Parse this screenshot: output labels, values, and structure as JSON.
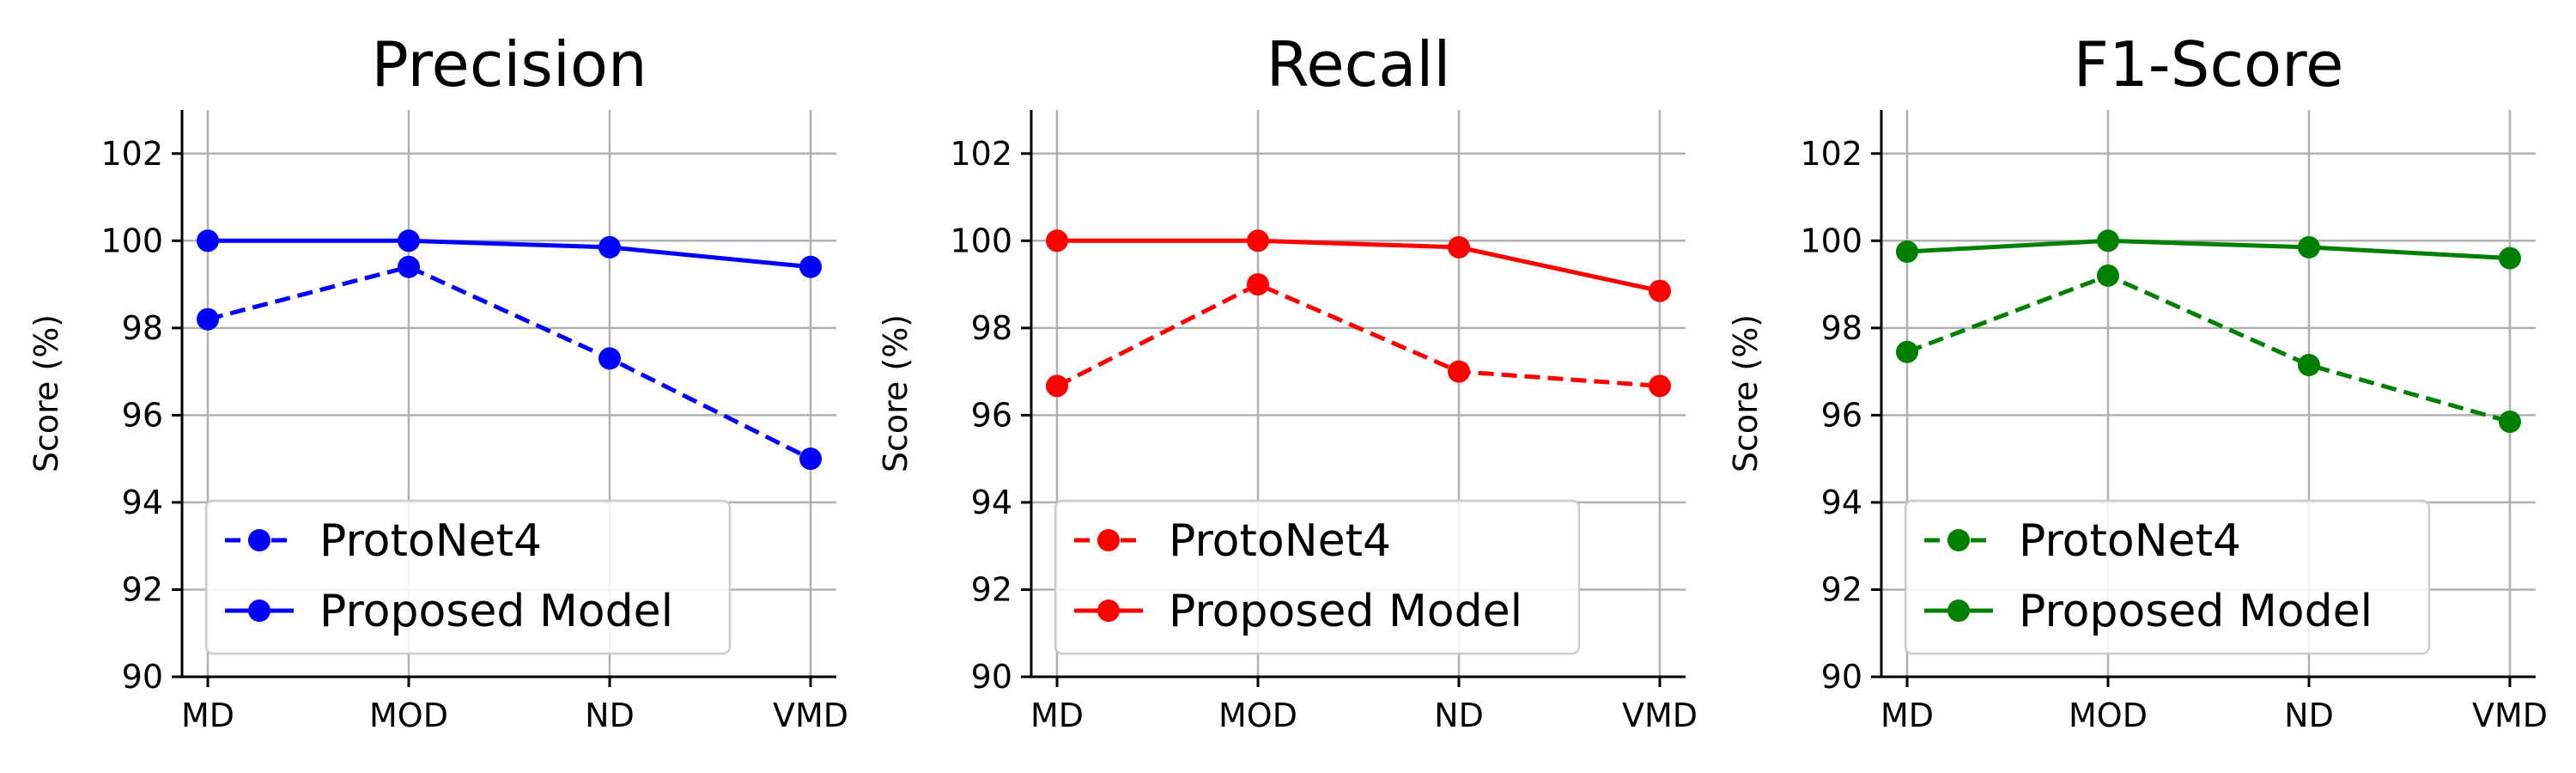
{
  "chart_data": [
    {
      "type": "line",
      "title": "Precision",
      "xlabel": "",
      "ylabel": "Score (%)",
      "categories": [
        "MD",
        "MOD",
        "ND",
        "VMD"
      ],
      "ylim": [
        90,
        103
      ],
      "yticks": [
        90,
        92,
        94,
        96,
        98,
        100,
        102
      ],
      "grid": true,
      "legend_position": "lower-left",
      "color": "#0000ff",
      "series": [
        {
          "name": "ProtoNet4",
          "style": "dashed",
          "values": [
            98.2,
            99.4,
            97.3,
            95.0
          ]
        },
        {
          "name": "Proposed Model",
          "style": "solid",
          "values": [
            100.0,
            100.0,
            99.85,
            99.4
          ]
        }
      ]
    },
    {
      "type": "line",
      "title": "Recall",
      "xlabel": "",
      "ylabel": "Score (%)",
      "categories": [
        "MD",
        "MOD",
        "ND",
        "VMD"
      ],
      "ylim": [
        90,
        103
      ],
      "yticks": [
        90,
        92,
        94,
        96,
        98,
        100,
        102
      ],
      "grid": true,
      "legend_position": "lower-left",
      "color": "#ff0000",
      "series": [
        {
          "name": "ProtoNet4",
          "style": "dashed",
          "values": [
            96.67,
            99.0,
            97.0,
            96.67
          ]
        },
        {
          "name": "Proposed Model",
          "style": "solid",
          "values": [
            100.0,
            100.0,
            99.85,
            98.85
          ]
        }
      ]
    },
    {
      "type": "line",
      "title": "F1-Score",
      "xlabel": "",
      "ylabel": "Score (%)",
      "categories": [
        "MD",
        "MOD",
        "ND",
        "VMD"
      ],
      "ylim": [
        90,
        103
      ],
      "yticks": [
        90,
        92,
        94,
        96,
        98,
        100,
        102
      ],
      "grid": true,
      "legend_position": "lower-left",
      "color": "#008000",
      "series": [
        {
          "name": "ProtoNet4",
          "style": "dashed",
          "values": [
            97.45,
            99.2,
            97.15,
            95.85
          ]
        },
        {
          "name": "Proposed Model",
          "style": "solid",
          "values": [
            99.75,
            100.0,
            99.85,
            99.6
          ]
        }
      ]
    }
  ]
}
